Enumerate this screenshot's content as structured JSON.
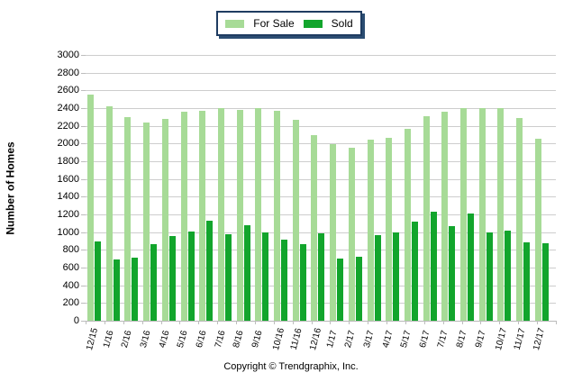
{
  "legend": {
    "for_sale_label": "For Sale",
    "sold_label": "Sold",
    "border_color": "#1f3c61",
    "shadow_color": "#2b4d72"
  },
  "footer": {
    "copyright": "Copyright © Trendgraphix, Inc."
  },
  "chart_data": {
    "type": "bar",
    "title": "",
    "xlabel": "",
    "ylabel": "Number of Homes",
    "ylim": [
      0,
      3000
    ],
    "ytick_step": 200,
    "yticks": [
      0,
      200,
      400,
      600,
      800,
      1000,
      1200,
      1400,
      1600,
      1800,
      2000,
      2200,
      2400,
      2600,
      2800,
      3000
    ],
    "grid": "horizontal",
    "legend_position": "top-center",
    "categories": [
      "12/15",
      "1/16",
      "2/16",
      "3/16",
      "4/16",
      "5/16",
      "6/16",
      "7/16",
      "8/16",
      "9/16",
      "10/16",
      "11/16",
      "12/16",
      "1/17",
      "2/17",
      "3/17",
      "4/17",
      "5/17",
      "6/17",
      "7/17",
      "8/17",
      "9/17",
      "10/17",
      "11/17",
      "12/17"
    ],
    "series": [
      {
        "name": "For Sale",
        "color": "#a7db97",
        "values": [
          2550,
          2425,
          2300,
          2240,
          2280,
          2360,
          2370,
          2400,
          2380,
          2405,
          2375,
          2270,
          2100,
          1995,
          1955,
          2045,
          2060,
          2170,
          2310,
          2360,
          2400,
          2400,
          2400,
          2290,
          2055
        ]
      },
      {
        "name": "Sold",
        "color": "#12a52c",
        "values": [
          900,
          690,
          715,
          865,
          960,
          1010,
          1130,
          975,
          1080,
          995,
          915,
          860,
          990,
          705,
          720,
          970,
          1000,
          1115,
          1235,
          1070,
          1215,
          995,
          1015,
          885,
          880
        ]
      }
    ]
  }
}
